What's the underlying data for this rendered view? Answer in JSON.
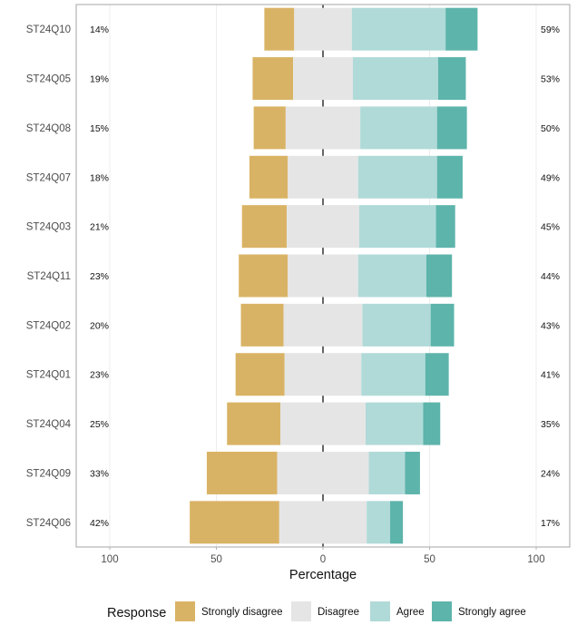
{
  "chart_data": {
    "type": "bar",
    "orientation": "horizontal",
    "stacked": "diverging",
    "categories": [
      "ST24Q10",
      "ST24Q05",
      "ST24Q08",
      "ST24Q07",
      "ST24Q03",
      "ST24Q11",
      "ST24Q02",
      "ST24Q01",
      "ST24Q04",
      "ST24Q09",
      "ST24Q06"
    ],
    "series": [
      {
        "name": "Strongly disagree",
        "color": "#D9B365",
        "values": [
          14,
          19,
          15,
          18,
          21,
          23,
          20,
          23,
          25,
          33,
          42
        ]
      },
      {
        "name": "Disagree",
        "color": "#E5E5E5",
        "values": [
          27,
          28,
          35,
          33,
          34,
          33,
          37,
          36,
          40,
          43,
          41
        ]
      },
      {
        "name": "Agree",
        "color": "#B0DAD8",
        "values": [
          44,
          40,
          36,
          37,
          36,
          32,
          32,
          30,
          27,
          17,
          11
        ]
      },
      {
        "name": "Strongly agree",
        "color": "#5DB4AB",
        "values": [
          15,
          13,
          14,
          12,
          9,
          12,
          11,
          11,
          8,
          7,
          6
        ]
      }
    ],
    "left_labels": [
      "14%",
      "19%",
      "15%",
      "18%",
      "21%",
      "23%",
      "20%",
      "23%",
      "25%",
      "33%",
      "42%"
    ],
    "right_labels": [
      "59%",
      "53%",
      "50%",
      "49%",
      "45%",
      "44%",
      "43%",
      "41%",
      "35%",
      "24%",
      "17%"
    ],
    "xlabel": "Percentage",
    "ylabel": "",
    "xlim": [
      -100,
      100
    ],
    "xticks": [
      -100,
      -50,
      0,
      50,
      100
    ],
    "xtick_labels": [
      "100",
      "50",
      "0",
      "50",
      "100"
    ],
    "legend": {
      "title": "Response",
      "position": "bottom",
      "entries": [
        "Strongly disagree",
        "Disagree",
        "Agree",
        "Strongly agree"
      ]
    },
    "grid": true
  }
}
